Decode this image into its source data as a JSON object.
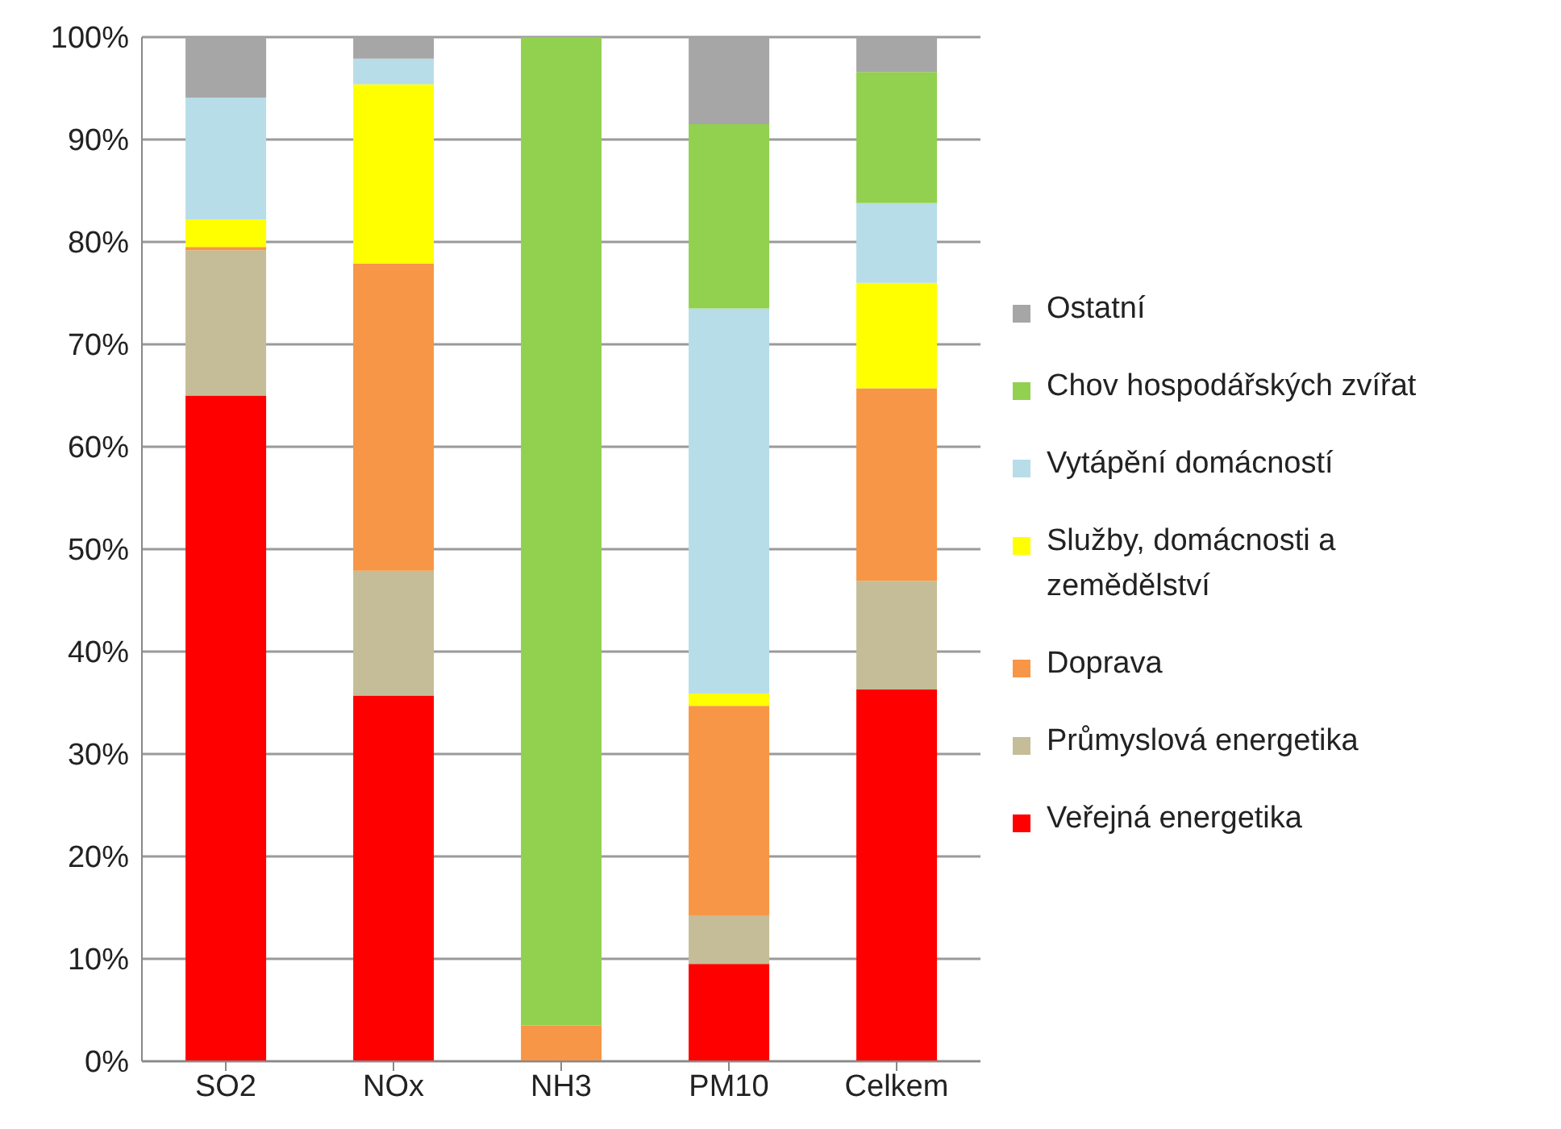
{
  "chart_data": {
    "type": "bar",
    "stacked": true,
    "categories": [
      "SO2",
      "NOx",
      "NH3",
      "PM10",
      "Celkem"
    ],
    "series": [
      {
        "name": "Veřejná energetika",
        "color": "#ff0000",
        "values": [
          65,
          35.7,
          0,
          9.5,
          36.3
        ]
      },
      {
        "name": "Průmyslová energetika",
        "color": "#c4bd97",
        "values": [
          14.2,
          12.2,
          0,
          4.7,
          10.6
        ]
      },
      {
        "name": "Doprava",
        "color": "#f79646",
        "values": [
          0.3,
          30,
          3.5,
          20.5,
          18.8
        ]
      },
      {
        "name": "Služby, domácnosti a zemědělství",
        "color": "#ffff00",
        "values": [
          2.7,
          17.5,
          0,
          1.2,
          10.3
        ]
      },
      {
        "name": "Vytápění domácností",
        "color": "#b7dde8",
        "values": [
          11.9,
          2.5,
          0,
          37.6,
          7.8
        ]
      },
      {
        "name": "Chov hospodářských zvířat",
        "color": "#92d050",
        "values": [
          0,
          0,
          96.5,
          18,
          12.8
        ]
      },
      {
        "name": "Ostatní",
        "color": "#a6a6a6",
        "values": [
          5.9,
          2.1,
          0,
          8.5,
          3.4
        ]
      }
    ],
    "ylim": [
      0,
      100
    ],
    "yticks": [
      {
        "value": 0,
        "label": "0%"
      },
      {
        "value": 10,
        "label": "10%"
      },
      {
        "value": 20,
        "label": "20%"
      },
      {
        "value": 30,
        "label": "30%"
      },
      {
        "value": 40,
        "label": "40%"
      },
      {
        "value": 50,
        "label": "50%"
      },
      {
        "value": 60,
        "label": "60%"
      },
      {
        "value": 70,
        "label": "70%"
      },
      {
        "value": 80,
        "label": "80%"
      },
      {
        "value": 90,
        "label": "90%"
      },
      {
        "value": 100,
        "label": "100%"
      }
    ],
    "grid": "y",
    "legend": "right"
  }
}
